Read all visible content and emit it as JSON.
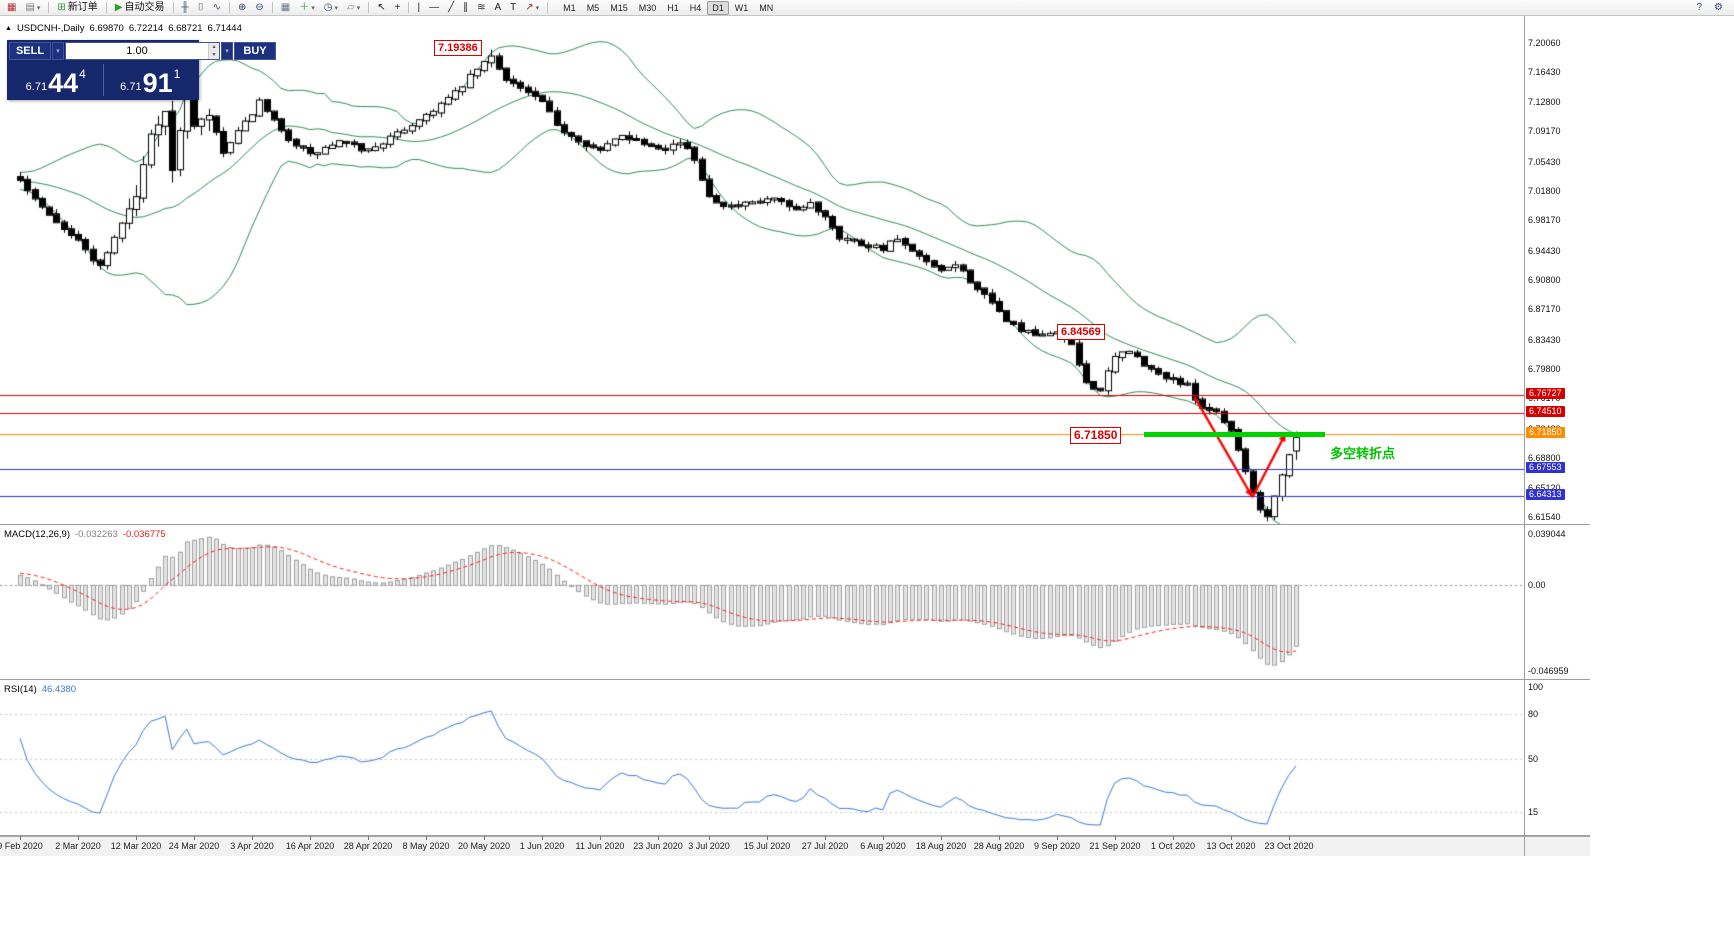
{
  "toolbar": {
    "items": [
      {
        "type": "btn",
        "name": "new-chart-icon",
        "glyph": "▦",
        "color": "#b03030"
      },
      {
        "type": "btn",
        "name": "profiles-icon",
        "glyph": "▤",
        "color": "#777777",
        "caret": true
      },
      {
        "type": "sep"
      },
      {
        "type": "btn",
        "name": "new-order-button",
        "glyph": "⊞",
        "color": "#2e9e2e",
        "label": "新订单"
      },
      {
        "type": "sep"
      },
      {
        "type": "btn",
        "name": "auto-trading-button",
        "glyph": "▶",
        "color": "#2e9e2e",
        "label": "自动交易"
      },
      {
        "type": "sep"
      },
      {
        "type": "btn",
        "name": "bar-chart-icon",
        "glyph": "╫",
        "color": "#445566"
      },
      {
        "type": "btn",
        "name": "candlestick-chart-icon",
        "glyph": "⌷",
        "color": "#445566"
      },
      {
        "type": "btn",
        "name": "line-chart-icon",
        "glyph": "∿",
        "color": "#445566"
      },
      {
        "type": "sep"
      },
      {
        "type": "btn",
        "name": "zoom-in-icon",
        "glyph": "⊕",
        "color": "#334477"
      },
      {
        "type": "btn",
        "name": "zoom-out-icon",
        "glyph": "⊖",
        "color": "#334477"
      },
      {
        "type": "sep"
      },
      {
        "type": "btn",
        "name": "tile-windows-icon",
        "glyph": "▦",
        "color": "#667788"
      },
      {
        "type": "btn",
        "name": "indicators-button",
        "glyph": "＋",
        "color": "#2e9e2e",
        "caret": true
      },
      {
        "type": "btn",
        "name": "periods-button",
        "glyph": "◷",
        "color": "#334477",
        "caret": true
      },
      {
        "type": "btn",
        "name": "templates-button",
        "glyph": "▱",
        "color": "#888888",
        "caret": true
      },
      {
        "type": "sep"
      },
      {
        "type": "btn",
        "name": "cursor-icon",
        "glyph": "↖",
        "color": "#222222"
      },
      {
        "type": "btn",
        "name": "crosshair-icon",
        "glyph": "+",
        "color": "#222222"
      },
      {
        "type": "sep"
      },
      {
        "type": "btn",
        "name": "vertical-line-icon",
        "glyph": "|",
        "color": "#222222"
      },
      {
        "type": "btn",
        "name": "horizontal-line-icon",
        "glyph": "—",
        "color": "#222222"
      },
      {
        "type": "btn",
        "name": "trendline-icon",
        "glyph": "╱",
        "color": "#222222"
      },
      {
        "type": "btn",
        "name": "channel-icon",
        "glyph": "∥",
        "color": "#222222"
      },
      {
        "type": "btn",
        "name": "fibonacci-icon",
        "glyph": "≋",
        "color": "#222222"
      },
      {
        "type": "btn",
        "name": "text-icon",
        "glyph": "A",
        "color": "#222222"
      },
      {
        "type": "btn",
        "name": "label-icon",
        "glyph": "T",
        "color": "#222222"
      },
      {
        "type": "btn",
        "name": "arrows-button",
        "glyph": "↗",
        "color": "#b03030",
        "caret": true
      },
      {
        "type": "sep"
      }
    ],
    "timeframes": [
      "M1",
      "M5",
      "M15",
      "M30",
      "H1",
      "H4",
      "D1",
      "W1",
      "MN"
    ],
    "active_timeframe": "D1",
    "right_items": [
      {
        "name": "help-icon",
        "glyph": "?"
      },
      {
        "name": "settings-icon",
        "glyph": "⚙"
      }
    ]
  },
  "chart": {
    "marker": "▲",
    "symbol_title": "USDCNH-,Daily",
    "open": "6.69870",
    "high": "6.72214",
    "low": "6.68721",
    "close": "6.71444"
  },
  "trade_panel": {
    "sell_label": "SELL",
    "buy_label": "BUY",
    "volume": "1.00",
    "caret": "▾",
    "spin_up": "▴",
    "spin_down": "▾",
    "sell_small": "6.71",
    "sell_big": "44",
    "sell_sup": "4",
    "buy_small": "6.71",
    "buy_big": "91",
    "buy_sup": "1"
  },
  "annotations": {
    "peak_label": "7.19386",
    "mid_label": "6.84569",
    "level_label": "6.71850",
    "turning_point_label": "多空转折点"
  },
  "price_axis": {
    "ticks": [
      "7.20060",
      "7.16430",
      "7.12800",
      "7.09170",
      "7.05430",
      "7.01800",
      "6.98170",
      "6.94430",
      "6.90800",
      "6.87170",
      "6.83430",
      "6.79800",
      "6.76170",
      "6.72430",
      "6.68800",
      "6.65120",
      "6.61540"
    ],
    "badges": [
      {
        "label": "6.76727",
        "bg": "#d40000"
      },
      {
        "label": "6.74510",
        "bg": "#d40000"
      },
      {
        "label": "6.71850",
        "bg": "#ff8c00"
      },
      {
        "label": "6.67553",
        "bg": "#3131d4"
      },
      {
        "label": "6.64313",
        "bg": "#3131d4"
      }
    ]
  },
  "macd": {
    "name": "MACD(12,26,9)",
    "value_main": "-0.032263",
    "value_signal": "-0.036775",
    "scale_top": "0.039044",
    "scale_zero": "0.00",
    "scale_bottom": "-0.046959"
  },
  "rsi": {
    "name": "RSI(14)",
    "value": "46.4380",
    "scale": [
      "100",
      "80",
      "50",
      "15"
    ]
  },
  "date_axis": [
    {
      "label": "9 Feb 2020",
      "i": 0
    },
    {
      "label": "2 Mar 2020",
      "i": 8
    },
    {
      "label": "12 Mar 2020",
      "i": 16
    },
    {
      "label": "24 Mar 2020",
      "i": 24
    },
    {
      "label": "3 Apr 2020",
      "i": 32
    },
    {
      "label": "16 Apr 2020",
      "i": 40
    },
    {
      "label": "28 Apr 2020",
      "i": 48
    },
    {
      "label": "8 May 2020",
      "i": 56
    },
    {
      "label": "20 May 2020",
      "i": 64
    },
    {
      "label": "1 Jun 2020",
      "i": 72
    },
    {
      "label": "11 Jun 2020",
      "i": 80
    },
    {
      "label": "23 Jun 2020",
      "i": 88
    },
    {
      "label": "3 Jul 2020",
      "i": 95
    },
    {
      "label": "15 Jul 2020",
      "i": 103
    },
    {
      "label": "27 Jul 2020",
      "i": 111
    },
    {
      "label": "6 Aug 2020",
      "i": 119
    },
    {
      "label": "18 Aug 2020",
      "i": 127
    },
    {
      "label": "28 Aug 2020",
      "i": 135
    },
    {
      "label": "9 Sep 2020",
      "i": 143
    },
    {
      "label": "21 Sep 2020",
      "i": 151
    },
    {
      "label": "1 Oct 2020",
      "i": 159
    },
    {
      "label": "13 Oct 2020",
      "i": 167
    },
    {
      "label": "23 Oct 2020",
      "i": 175
    }
  ],
  "chart_data": {
    "type": "candlestick",
    "symbol": "USDCNH",
    "timeframe": "Daily",
    "price_range": [
      6.6154,
      7.2006
    ],
    "last_ohlc": [
      6.6987,
      6.72214,
      6.68721,
      6.71444
    ],
    "forced_high": [
      65,
      7.19386
    ],
    "forced_low": [
      172,
      6.6154
    ],
    "close_anchors": [
      [
        -30,
        6.995
      ],
      [
        -24,
        7.015
      ],
      [
        -18,
        7.035
      ],
      [
        -12,
        7.02
      ],
      [
        -6,
        7.04
      ],
      [
        0,
        7.032
      ],
      [
        4,
        6.992
      ],
      [
        8,
        6.957
      ],
      [
        11,
        6.926
      ],
      [
        14,
        6.98
      ],
      [
        16,
        7.012
      ],
      [
        18,
        7.088
      ],
      [
        20,
        7.118
      ],
      [
        21,
        7.042
      ],
      [
        23,
        7.148
      ],
      [
        24,
        7.098
      ],
      [
        26,
        7.112
      ],
      [
        28,
        7.066
      ],
      [
        31,
        7.102
      ],
      [
        33,
        7.128
      ],
      [
        36,
        7.092
      ],
      [
        40,
        7.063
      ],
      [
        44,
        7.079
      ],
      [
        48,
        7.069
      ],
      [
        52,
        7.089
      ],
      [
        56,
        7.113
      ],
      [
        60,
        7.139
      ],
      [
        63,
        7.169
      ],
      [
        65,
        7.184
      ],
      [
        67,
        7.159
      ],
      [
        69,
        7.146
      ],
      [
        72,
        7.129
      ],
      [
        74,
        7.099
      ],
      [
        77,
        7.083
      ],
      [
        80,
        7.068
      ],
      [
        83,
        7.089
      ],
      [
        86,
        7.079
      ],
      [
        89,
        7.073
      ],
      [
        91,
        7.079
      ],
      [
        93,
        7.059
      ],
      [
        95,
        7.013
      ],
      [
        98,
        6.999
      ],
      [
        101,
        7.003
      ],
      [
        104,
        7.009
      ],
      [
        107,
        6.993
      ],
      [
        109,
        7.003
      ],
      [
        111,
        6.989
      ],
      [
        113,
        6.963
      ],
      [
        116,
        6.954
      ],
      [
        119,
        6.949
      ],
      [
        121,
        6.959
      ],
      [
        123,
        6.943
      ],
      [
        125,
        6.931
      ],
      [
        127,
        6.918
      ],
      [
        129,
        6.929
      ],
      [
        131,
        6.909
      ],
      [
        133,
        6.889
      ],
      [
        135,
        6.869
      ],
      [
        137,
        6.853
      ],
      [
        139,
        6.843
      ],
      [
        141,
        6.839
      ],
      [
        143,
        6.847
      ],
      [
        145,
        6.827
      ],
      [
        147,
        6.783
      ],
      [
        149,
        6.773
      ],
      [
        151,
        6.813
      ],
      [
        153,
        6.823
      ],
      [
        155,
        6.803
      ],
      [
        157,
        6.793
      ],
      [
        159,
        6.787
      ],
      [
        161,
        6.777
      ],
      [
        163,
        6.753
      ],
      [
        165,
        6.747
      ],
      [
        167,
        6.723
      ],
      [
        168,
        6.701
      ],
      [
        169,
        6.673
      ],
      [
        170,
        6.647
      ],
      [
        171,
        6.627
      ],
      [
        172,
        6.618
      ],
      [
        173,
        6.643
      ],
      [
        174,
        6.669
      ],
      [
        175,
        6.693
      ],
      [
        176,
        6.7144
      ]
    ],
    "bollinger": {
      "period": 20,
      "deviation": 2,
      "color": "#2e8b57"
    },
    "macd": {
      "fast": 12,
      "slow": 26,
      "signal_period": 9,
      "current_main": -0.032263,
      "current_signal": -0.036775,
      "hist_fill": "#e4e4e4",
      "hist_stroke": "#a0a0a0",
      "signal_color": "#ff2020"
    },
    "rsi": {
      "period": 14,
      "current": 46.438,
      "color": "#3b78d8",
      "levels": [
        80,
        50,
        15
      ]
    },
    "levels": [
      {
        "price": 6.76727,
        "color": "#e00000"
      },
      {
        "price": 6.7451,
        "color": "#e00000"
      },
      {
        "price": 6.7185,
        "color": "#ff8c00"
      },
      {
        "price": 6.67553,
        "color": "#3131d4"
      },
      {
        "price": 6.64313,
        "color": "#3131d4"
      }
    ],
    "highlight_segment": {
      "price": 6.7185,
      "from_i": 155,
      "to_i": 180,
      "color": "#00d200"
    },
    "trend_arrows": [
      {
        "from": [
          162,
          6.765
        ],
        "to": [
          170,
          6.641
        ],
        "color": "#ff0000"
      },
      {
        "from": [
          170,
          6.641
        ],
        "to": [
          174.6,
          6.72
        ],
        "color": "#ff0000"
      }
    ],
    "candle_up_color": "#ffffff",
    "candle_down_color": "#000000",
    "candle_outline": "#000000"
  }
}
